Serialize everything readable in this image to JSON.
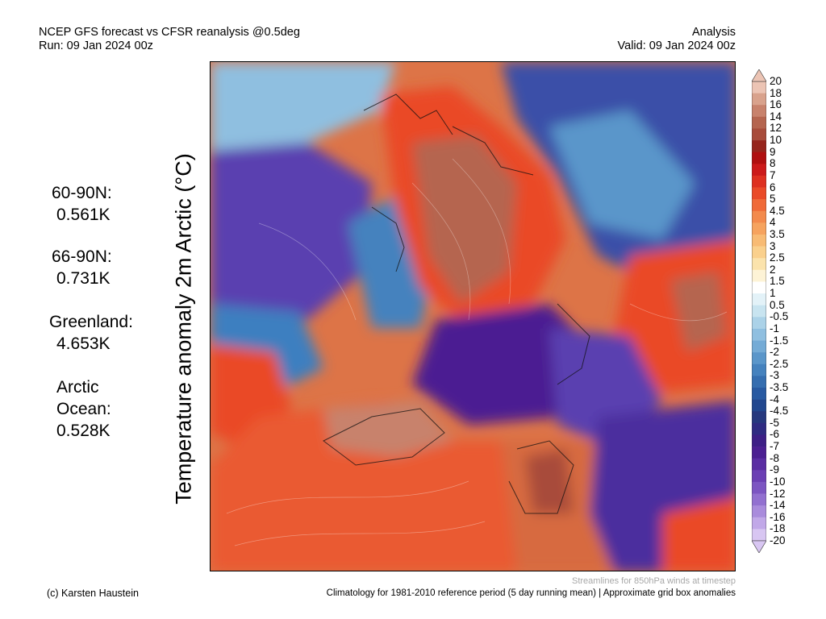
{
  "header": {
    "title_line1": "NCEP GFS forecast vs CFSR reanalysis @0.5deg",
    "title_line2": "Run: 09 Jan 2024 00z",
    "right_line1": "Analysis",
    "right_line2": "Valid: 09 Jan 2024 00z"
  },
  "stats": [
    {
      "label": "60-90N:",
      "value": "0.561K"
    },
    {
      "label": "66-90N:",
      "value": "0.731K"
    },
    {
      "label": "Greenland:",
      "value": "4.653K"
    },
    {
      "label": "Arctic",
      "label2": "Ocean:",
      "value": "0.528K"
    }
  ],
  "y_title": "Temperature anomaly 2m Arctic (°C)",
  "colorbar": {
    "levels": [
      "20",
      "18",
      "16",
      "14",
      "12",
      "10",
      "9",
      "8",
      "7",
      "6",
      "5",
      "4.5",
      "4",
      "3.5",
      "3",
      "2.5",
      "2",
      "1.5",
      "1",
      "0.5",
      "-0.5",
      "-1",
      "-1.5",
      "-2",
      "-2.5",
      "-3",
      "-3.5",
      "-4",
      "-4.5",
      "-5",
      "-6",
      "-7",
      "-8",
      "-9",
      "-10",
      "-12",
      "-14",
      "-16",
      "-18",
      "-20"
    ],
    "colors": [
      "#ecc4b4",
      "#d9a28c",
      "#c8826c",
      "#b5654f",
      "#a84c3b",
      "#96251c",
      "#b01010",
      "#cc1a1a",
      "#de3020",
      "#ea4a28",
      "#f06a38",
      "#f38a4c",
      "#f6a35e",
      "#f8bb74",
      "#fad08c",
      "#fbe3ac",
      "#fdf3d6",
      "#ffffff",
      "#e3f2f8",
      "#c8e4f0",
      "#abd2e8",
      "#8fbfe0",
      "#74abd6",
      "#5a96ca",
      "#4582be",
      "#356eb0",
      "#285aa2",
      "#21478f",
      "#26387e",
      "#2f2b82",
      "#3d1f86",
      "#4b1f92",
      "#5a2da3",
      "#6b3fb4",
      "#7c55c2",
      "#9270d0",
      "#a98bdc",
      "#c1a8e8",
      "#d8c6f2"
    ],
    "under_color": "#d8c6f2",
    "over_color": "#ecc4b4"
  },
  "footer": {
    "credit": "(c) Karsten Haustein",
    "streamlines_note": "Streamlines for 850hPa winds at timestep",
    "climatology_note": "Climatology for 1981-2010 reference period (5 day running mean) | Approximate grid box anomalies"
  }
}
